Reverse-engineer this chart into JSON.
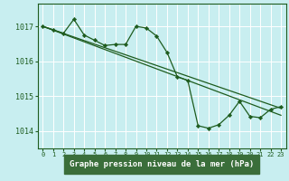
{
  "title": "Graphe pression niveau de la mer (hPa)",
  "bg_color": "#c8eef0",
  "plot_bg_color": "#c8eef0",
  "grid_color": "#ffffff",
  "line_color": "#1e5c1e",
  "marker_color": "#1e5c1e",
  "xlim": [
    -0.5,
    23.5
  ],
  "ylim": [
    1013.5,
    1017.65
  ],
  "yticks": [
    1014,
    1015,
    1016,
    1017
  ],
  "xticks": [
    0,
    1,
    2,
    3,
    4,
    5,
    6,
    7,
    8,
    9,
    10,
    11,
    12,
    13,
    14,
    15,
    16,
    17,
    18,
    19,
    20,
    21,
    22,
    23
  ],
  "series": [
    {
      "x": [
        0,
        23
      ],
      "y": [
        1017.0,
        1014.45
      ],
      "has_markers": false
    },
    {
      "x": [
        0,
        23
      ],
      "y": [
        1017.0,
        1014.65
      ],
      "has_markers": false
    },
    {
      "x": [
        0,
        1,
        2,
        3,
        4,
        5,
        6,
        7,
        8,
        9,
        10,
        11,
        12,
        13,
        14,
        15,
        16,
        17,
        18,
        19,
        20,
        21,
        22,
        23
      ],
      "y": [
        1017.0,
        1016.9,
        1016.8,
        1017.2,
        1016.75,
        1016.6,
        1016.45,
        1016.48,
        1016.48,
        1017.0,
        1016.95,
        1016.72,
        1016.25,
        1015.55,
        1015.45,
        1014.15,
        1014.08,
        1014.18,
        1014.45,
        1014.85,
        1014.42,
        1014.38,
        1014.62,
        1014.7
      ],
      "has_markers": true
    }
  ],
  "title_bg_color": "#3a6e3a",
  "title_text_color": "#ffffff"
}
